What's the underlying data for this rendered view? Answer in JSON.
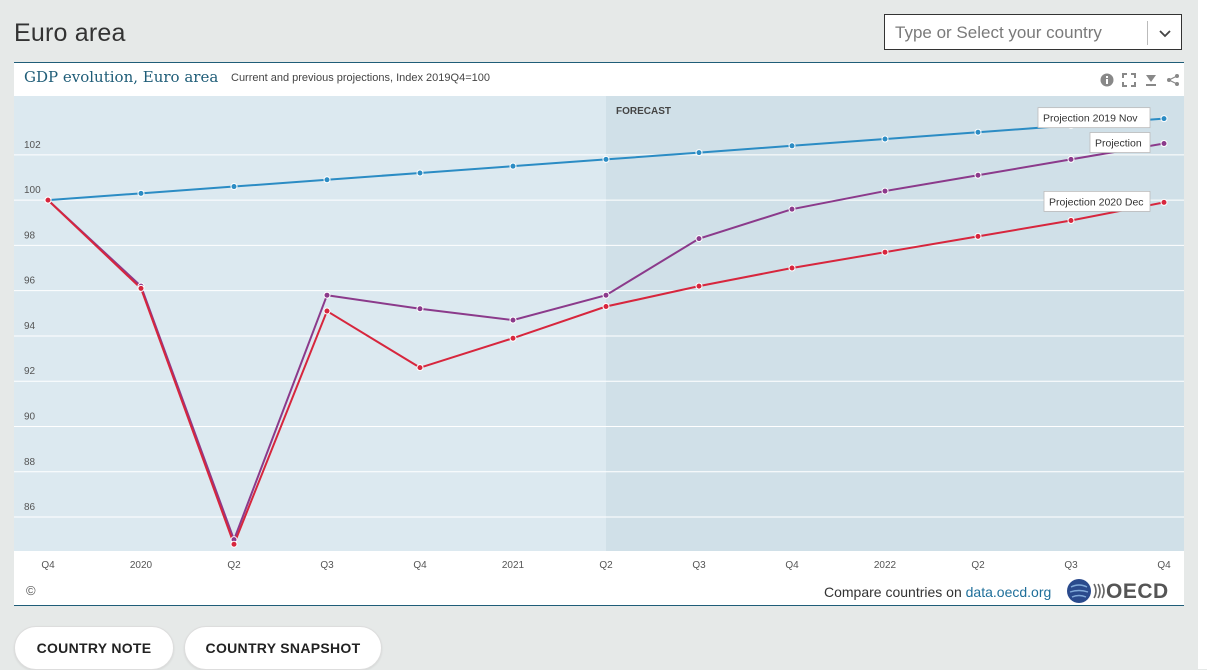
{
  "page": {
    "title": "Euro area",
    "country_select_placeholder": "Type or Select your country"
  },
  "chart_header": {
    "title": "GDP evolution, Euro area",
    "subtitle": "Current and previous projections, Index 2019Q4=100"
  },
  "footer": {
    "copyright": "©",
    "compare_prefix": "Compare countries on ",
    "compare_link": "data.oecd.org",
    "logo_text": "OECD"
  },
  "buttons": {
    "country_note": "COUNTRY NOTE",
    "country_snapshot": "COUNTRY SNAPSHOT"
  },
  "chart_data": {
    "type": "line",
    "categories": [
      "Q4",
      "2020",
      "Q2",
      "Q3",
      "Q4",
      "2021",
      "Q2",
      "Q3",
      "Q4",
      "2022",
      "Q2",
      "Q3",
      "Q4"
    ],
    "series": [
      {
        "name": "Projection 2019 Nov",
        "color": "#2b8cc4",
        "values": [
          100,
          100.3,
          100.6,
          100.9,
          101.2,
          101.5,
          101.8,
          102.1,
          102.4,
          102.7,
          103.0,
          103.3,
          103.6
        ]
      },
      {
        "name": "Projection",
        "color": "#8b3a8b",
        "values": [
          100,
          96.2,
          85.0,
          95.8,
          95.2,
          94.7,
          95.8,
          98.3,
          99.6,
          100.4,
          101.1,
          101.8,
          102.5
        ]
      },
      {
        "name": "Projection 2020 Dec",
        "color": "#d7263d",
        "values": [
          100,
          96.1,
          84.8,
          95.1,
          92.6,
          93.9,
          95.3,
          96.2,
          97.0,
          97.7,
          98.4,
          99.1,
          99.9
        ]
      }
    ],
    "y_ticks": [
      86,
      88,
      90,
      92,
      94,
      96,
      98,
      100,
      102
    ],
    "ylim": [
      84.5,
      104.6
    ],
    "forecast_label": "FORECAST",
    "forecast_start_index": 6,
    "grid": true,
    "legend_placement": "end-of-line labels"
  }
}
